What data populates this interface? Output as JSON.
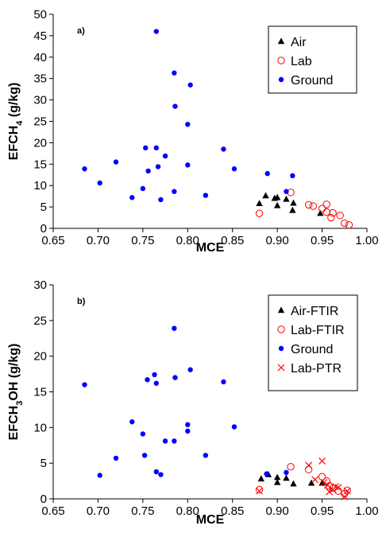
{
  "chart_data": [
    {
      "type": "scatter",
      "panel_label": "a)",
      "xlabel": "MCE",
      "ylabel": {
        "prefix": "EFCH",
        "sub": "4",
        "suffix": " (g/kg)"
      },
      "xlim": [
        0.65,
        1.0
      ],
      "ylim": [
        0,
        50
      ],
      "xticks": [
        "0.65",
        "0.70",
        "0.75",
        "0.80",
        "0.85",
        "0.90",
        "0.95",
        "1.00"
      ],
      "yticks": [
        "0",
        "5",
        "10",
        "15",
        "20",
        "25",
        "30",
        "35",
        "40",
        "45",
        "50"
      ],
      "grid": false,
      "legend_position": "top-right",
      "series": [
        {
          "name": "Air",
          "marker": "triangle",
          "color": "#000000",
          "points": [
            [
              0.88,
              5.8
            ],
            [
              0.887,
              7.6
            ],
            [
              0.897,
              7.0
            ],
            [
              0.9,
              7.2
            ],
            [
              0.9,
              5.3
            ],
            [
              0.91,
              6.8
            ],
            [
              0.918,
              5.9
            ],
            [
              0.917,
              4.2
            ],
            [
              0.948,
              3.5
            ]
          ]
        },
        {
          "name": "Lab",
          "marker": "circle-open",
          "color": "#ff0000",
          "points": [
            [
              0.88,
              3.5
            ],
            [
              0.915,
              8.4
            ],
            [
              0.935,
              5.5
            ],
            [
              0.94,
              5.2
            ],
            [
              0.95,
              4.6
            ],
            [
              0.955,
              5.6
            ],
            [
              0.955,
              3.8
            ],
            [
              0.96,
              2.5
            ],
            [
              0.962,
              3.6
            ],
            [
              0.97,
              3.0
            ],
            [
              0.975,
              1.2
            ],
            [
              0.98,
              0.8
            ]
          ]
        },
        {
          "name": "Ground",
          "marker": "circle-filled",
          "color": "#0000ff",
          "points": [
            [
              0.685,
              13.9
            ],
            [
              0.702,
              10.6
            ],
            [
              0.72,
              15.5
            ],
            [
              0.738,
              7.2
            ],
            [
              0.75,
              9.3
            ],
            [
              0.753,
              18.8
            ],
            [
              0.756,
              13.4
            ],
            [
              0.765,
              46.0
            ],
            [
              0.765,
              18.8
            ],
            [
              0.767,
              14.4
            ],
            [
              0.77,
              6.7
            ],
            [
              0.775,
              16.9
            ],
            [
              0.785,
              36.3
            ],
            [
              0.786,
              28.5
            ],
            [
              0.785,
              8.6
            ],
            [
              0.8,
              24.3
            ],
            [
              0.8,
              14.8
            ],
            [
              0.803,
              33.5
            ],
            [
              0.82,
              7.7
            ],
            [
              0.84,
              18.5
            ],
            [
              0.852,
              13.9
            ],
            [
              0.889,
              12.8
            ],
            [
              0.91,
              8.6
            ],
            [
              0.917,
              12.3
            ]
          ]
        }
      ]
    },
    {
      "type": "scatter",
      "panel_label": "b)",
      "xlabel": "MCE",
      "ylabel": {
        "prefix": "EFCH",
        "sub": "3",
        "suffix": "OH (g/kg)"
      },
      "xlim": [
        0.65,
        1.0
      ],
      "ylim": [
        0,
        30
      ],
      "xticks": [
        "0.65",
        "0.70",
        "0.75",
        "0.80",
        "0.85",
        "0.90",
        "0.95",
        "1.00"
      ],
      "yticks": [
        "0",
        "5",
        "10",
        "15",
        "20",
        "25",
        "30"
      ],
      "grid": false,
      "legend_position": "top-right",
      "series": [
        {
          "name": "Air-FTIR",
          "marker": "triangle",
          "color": "#000000",
          "points": [
            [
              0.882,
              2.8
            ],
            [
              0.89,
              3.4
            ],
            [
              0.9,
              3.0
            ],
            [
              0.9,
              2.3
            ],
            [
              0.91,
              2.9
            ],
            [
              0.918,
              2.1
            ],
            [
              0.938,
              2.2
            ],
            [
              0.95,
              2.2
            ]
          ]
        },
        {
          "name": "Lab-FTIR",
          "marker": "circle-open",
          "color": "#ff0000",
          "points": [
            [
              0.88,
              1.3
            ],
            [
              0.915,
              4.5
            ],
            [
              0.935,
              4.1
            ],
            [
              0.95,
              3.1
            ],
            [
              0.955,
              2.5
            ],
            [
              0.958,
              1.8
            ],
            [
              0.962,
              1.5
            ],
            [
              0.968,
              1.1
            ],
            [
              0.975,
              0.7
            ],
            [
              0.978,
              1.2
            ]
          ]
        },
        {
          "name": "Ground",
          "marker": "circle-filled",
          "color": "#0000ff",
          "points": [
            [
              0.685,
              16.0
            ],
            [
              0.702,
              3.3
            ],
            [
              0.72,
              5.7
            ],
            [
              0.738,
              10.8
            ],
            [
              0.75,
              9.1
            ],
            [
              0.752,
              6.1
            ],
            [
              0.755,
              16.7
            ],
            [
              0.763,
              17.4
            ],
            [
              0.765,
              16.2
            ],
            [
              0.765,
              3.8
            ],
            [
              0.77,
              3.4
            ],
            [
              0.775,
              8.1
            ],
            [
              0.785,
              23.9
            ],
            [
              0.786,
              17.0
            ],
            [
              0.785,
              8.1
            ],
            [
              0.8,
              10.4
            ],
            [
              0.8,
              9.5
            ],
            [
              0.803,
              18.1
            ],
            [
              0.82,
              6.1
            ],
            [
              0.84,
              16.4
            ],
            [
              0.852,
              10.1
            ],
            [
              0.888,
              3.5
            ],
            [
              0.91,
              3.7
            ]
          ]
        },
        {
          "name": "Lab-PTR",
          "marker": "x",
          "color": "#ff0000",
          "points": [
            [
              0.88,
              1.1
            ],
            [
              0.935,
              4.7
            ],
            [
              0.942,
              2.7
            ],
            [
              0.95,
              5.3
            ],
            [
              0.952,
              2.3
            ],
            [
              0.956,
              1.9
            ],
            [
              0.958,
              1.0
            ],
            [
              0.962,
              1.3
            ],
            [
              0.965,
              1.7
            ],
            [
              0.968,
              1.6
            ],
            [
              0.975,
              0.3
            ],
            [
              0.978,
              1.1
            ]
          ]
        }
      ]
    }
  ]
}
